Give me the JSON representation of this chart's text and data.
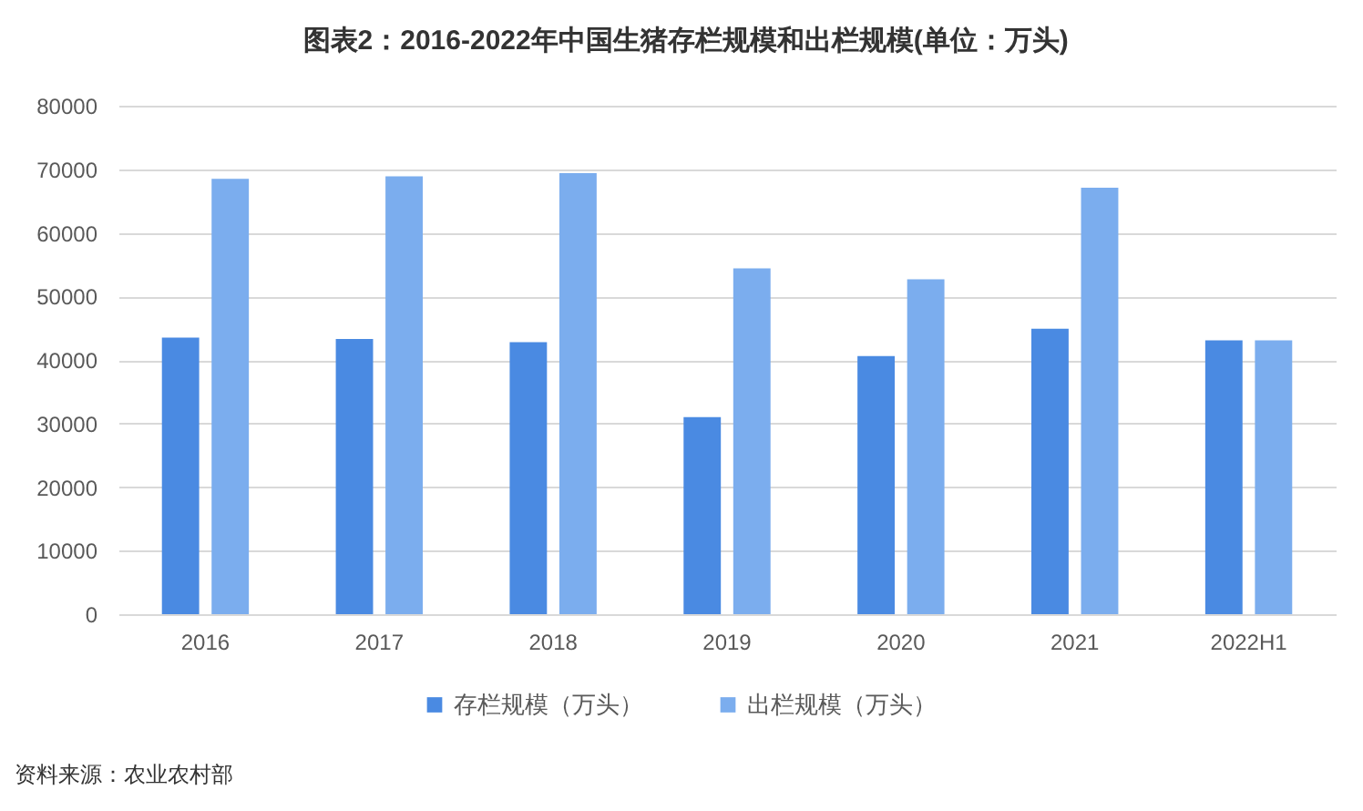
{
  "chart_data": {
    "type": "bar",
    "title": "图表2：2016-2022年中国生猪存栏规模和出栏规模(单位：万头)",
    "categories": [
      "2016",
      "2017",
      "2018",
      "2019",
      "2020",
      "2021",
      "2022H1"
    ],
    "series": [
      {
        "name": "存栏规模（万头）",
        "color": "#4a8ae2",
        "values": [
          43500,
          43300,
          42800,
          31000,
          40600,
          44900,
          43100
        ]
      },
      {
        "name": "出栏规模（万头）",
        "color": "#7badee",
        "values": [
          68500,
          68900,
          69400,
          54400,
          52700,
          67100,
          43100
        ]
      }
    ],
    "ylim": [
      0,
      80000
    ],
    "yticks": [
      0,
      10000,
      20000,
      30000,
      40000,
      50000,
      60000,
      70000,
      80000
    ],
    "grid": "y",
    "legend": "bottom",
    "annotations": [
      "资料来源：农业农村部"
    ]
  }
}
